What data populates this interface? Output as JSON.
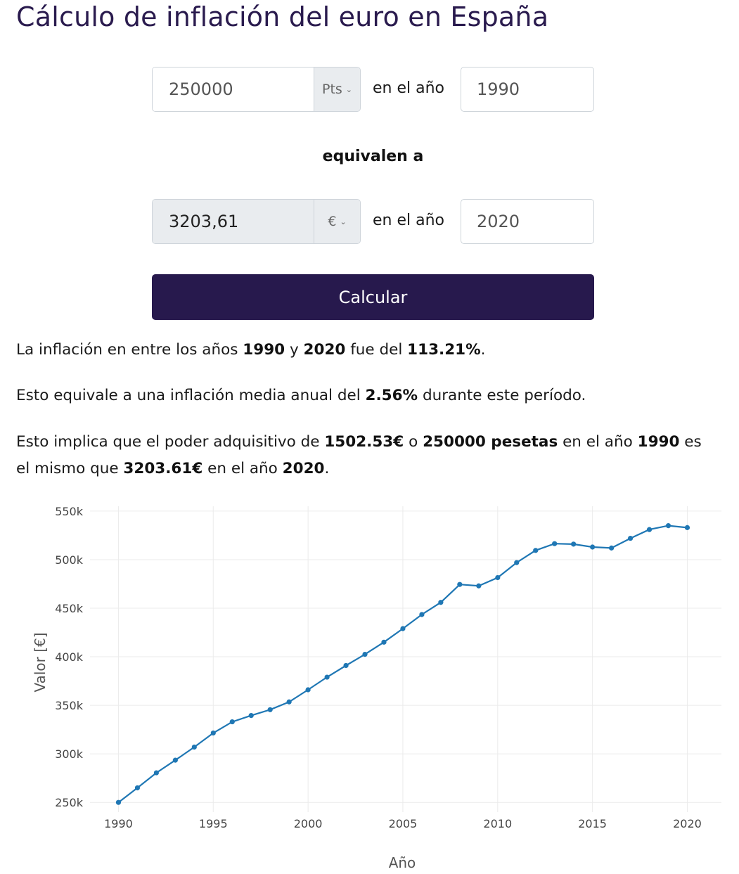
{
  "page": {
    "title": "Cálculo de inflación del euro en España"
  },
  "form": {
    "source_amount": "250000",
    "source_unit": "Pts",
    "year_label": "en el año",
    "source_year": "1990",
    "equivalen_label": "equivalen a",
    "result_amount": "3203,61",
    "result_unit": "€",
    "target_year": "2020",
    "calculate_label": "Calcular"
  },
  "results": {
    "p1": {
      "t1": "La inflación en entre los años ",
      "year_from": "1990",
      "t2": " y ",
      "year_to": "2020",
      "t3": " fue del ",
      "total_inflation": "113.21%",
      "t4": "."
    },
    "p2": {
      "t1": "Esto equivale a una inflación media anual del ",
      "avg_inflation": "2.56%",
      "t2": " durante este período."
    },
    "p3": {
      "t1": "Esto implica que el poder adquisitivo de ",
      "euros_from": "1502.53€",
      "t2": " o ",
      "pesetas_from": "250000 pesetas",
      "t3": " en el año ",
      "year_from": "1990",
      "t4": " es",
      "t5": "el mismo que ",
      "euros_to": "3203.61€",
      "t6": " en el año ",
      "year_to": "2020",
      "t7": "."
    }
  },
  "chart_data": {
    "type": "line",
    "xlabel": "Año",
    "ylabel": "Valor [€]",
    "xlim": [
      1988.5,
      2021.8
    ],
    "ylim": [
      240000,
      555000
    ],
    "xticks": [
      1990,
      1995,
      2000,
      2005,
      2010,
      2015,
      2020
    ],
    "yticks": [
      250000,
      300000,
      350000,
      400000,
      450000,
      500000,
      550000
    ],
    "ytick_labels": [
      "250k",
      "300k",
      "350k",
      "400k",
      "450k",
      "500k",
      "550k"
    ],
    "grid": true,
    "line_color": "#1f77b4",
    "series": [
      {
        "x": [
          1990,
          1991,
          1992,
          1993,
          1994,
          1995,
          1996,
          1997,
          1998,
          1999,
          2000,
          2001,
          2002,
          2003,
          2004,
          2005,
          2006,
          2007,
          2008,
          2009,
          2010,
          2011,
          2012,
          2013,
          2014,
          2015,
          2016,
          2017,
          2018,
          2019,
          2020
        ],
        "values": [
          250000,
          265000,
          280500,
          293500,
          307000,
          321500,
          333000,
          339500,
          345500,
          353500,
          366000,
          379000,
          391000,
          402500,
          415000,
          429000,
          443500,
          456000,
          474500,
          473000,
          481500,
          497000,
          509500,
          516500,
          516000,
          513000,
          512000,
          522000,
          531000,
          535000,
          533000
        ]
      }
    ]
  }
}
